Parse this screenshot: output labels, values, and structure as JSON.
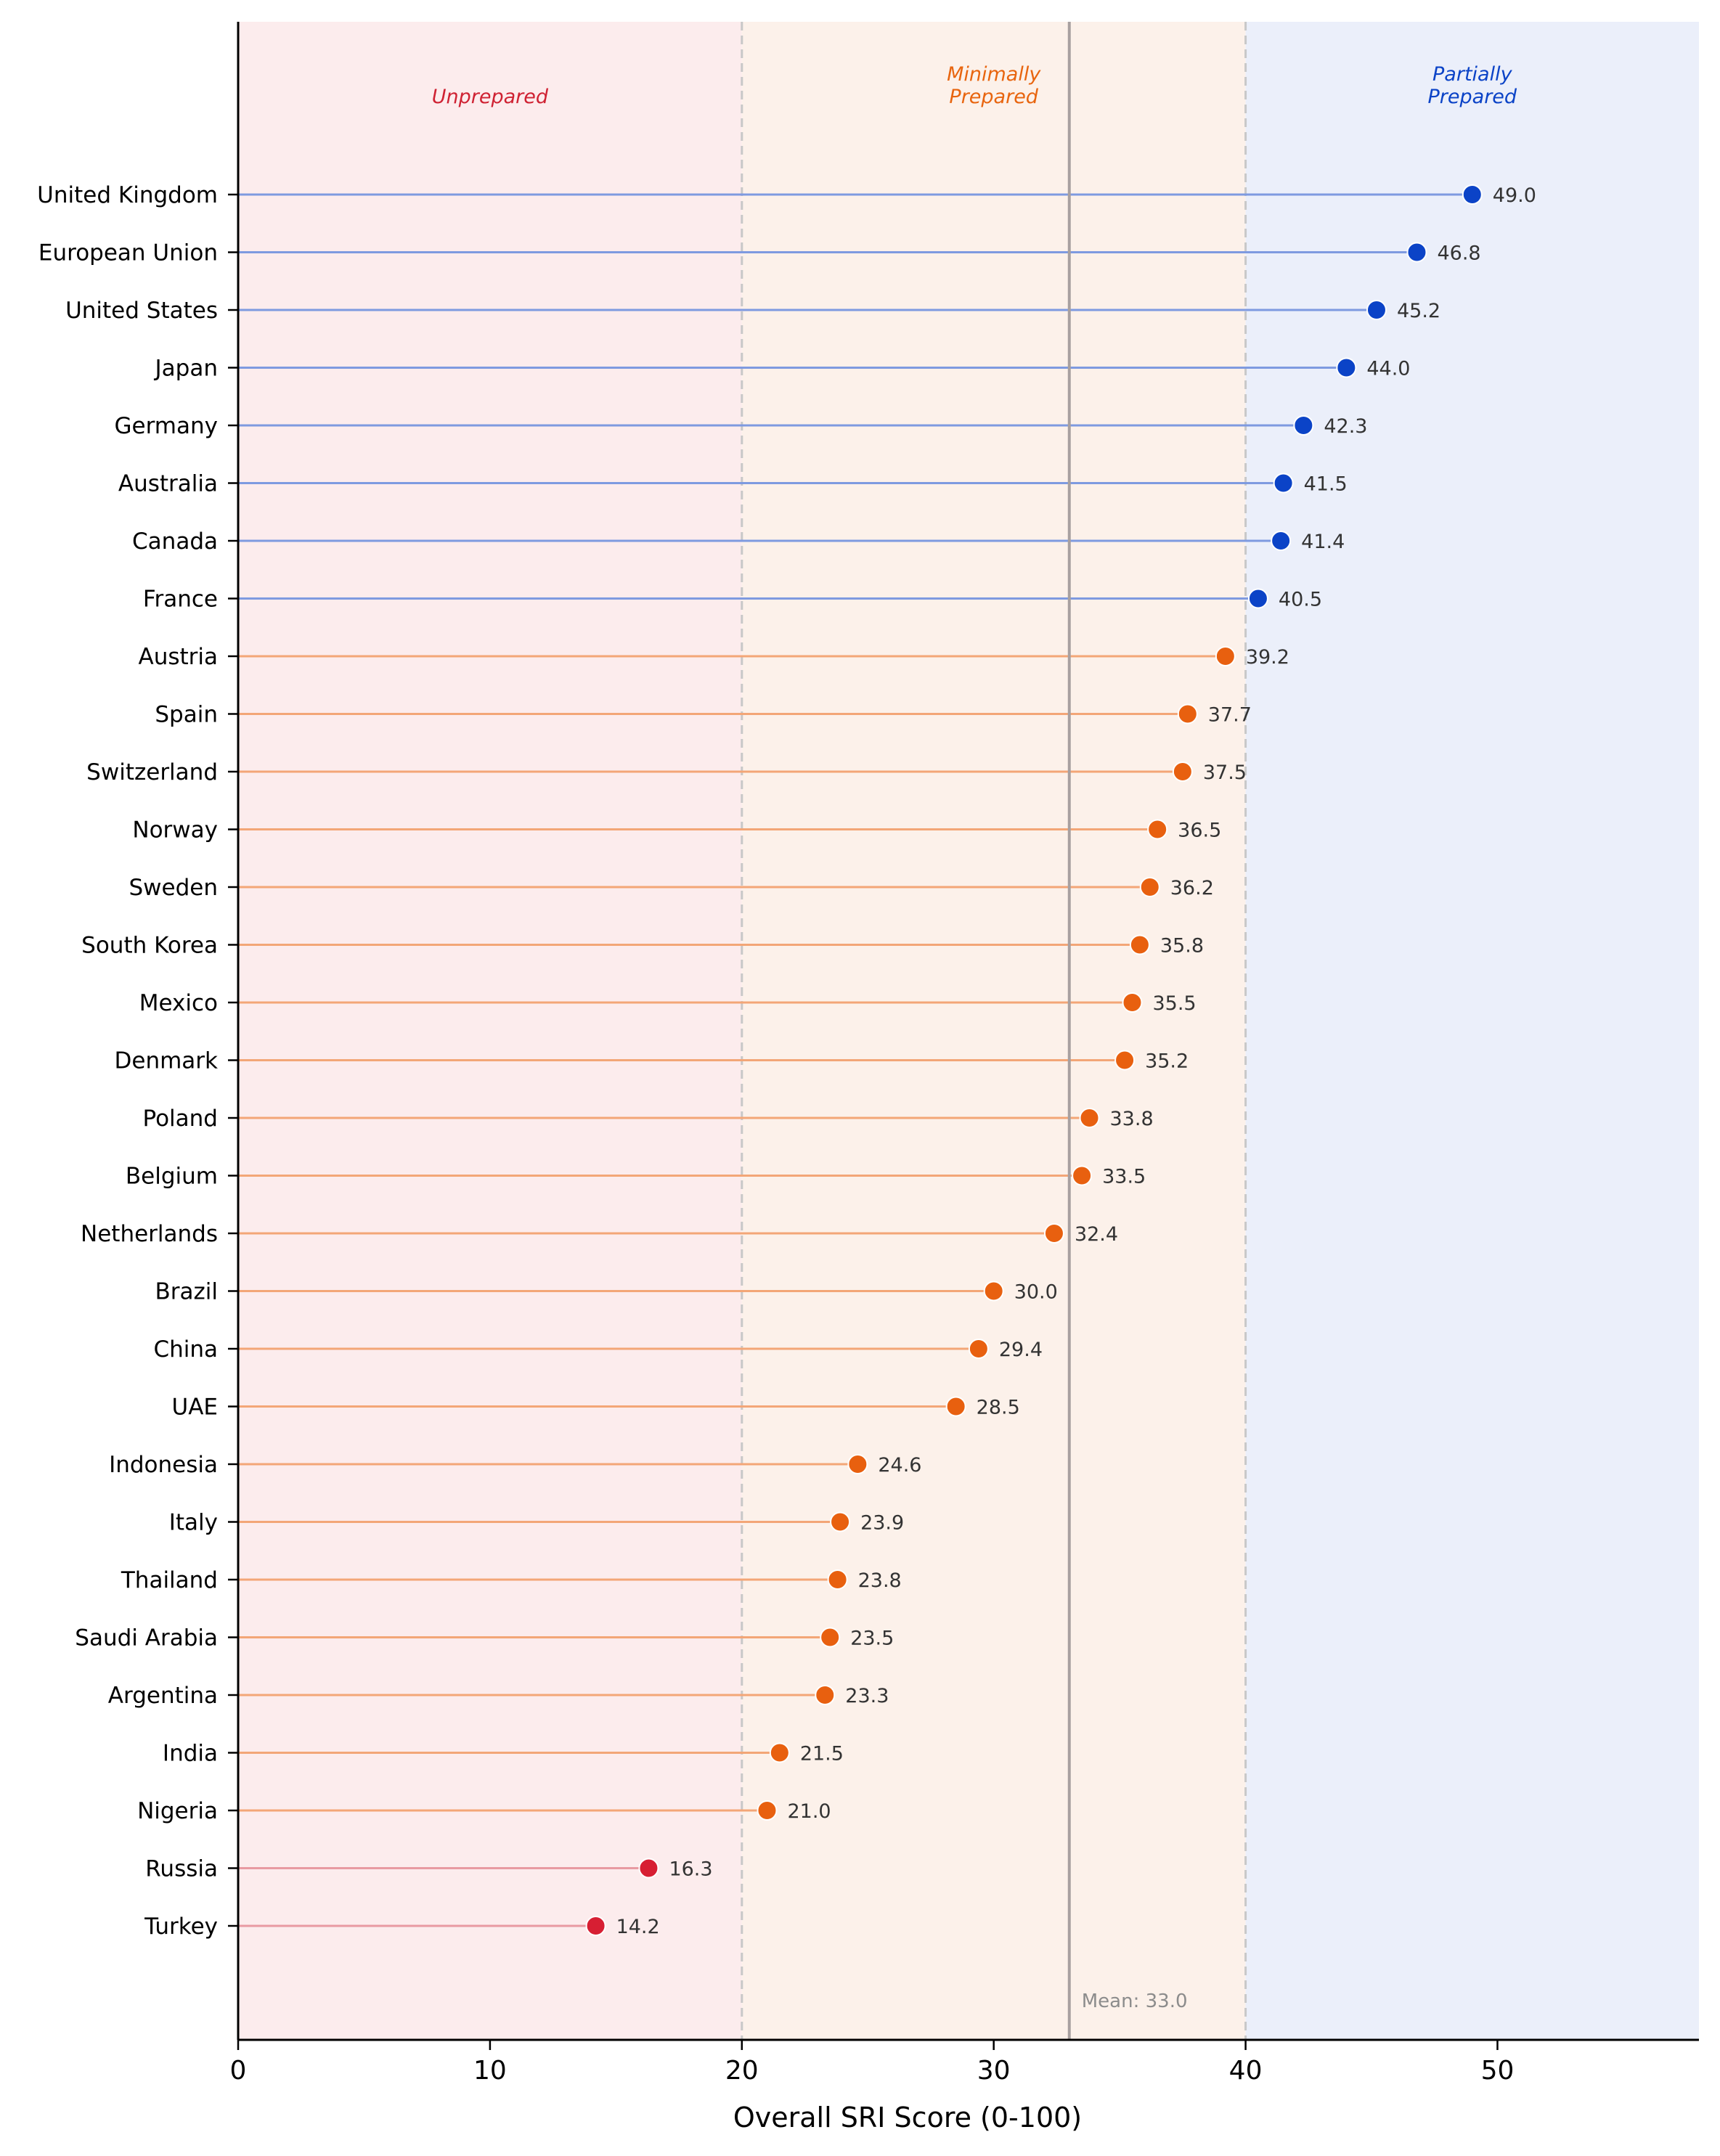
{
  "chart_data": {
    "type": "lollipop",
    "title": "",
    "xlabel": "Overall SRI Score (0-100)",
    "ylabel": "",
    "xlim": [
      0,
      58
    ],
    "xticks": [
      0,
      10,
      20,
      30,
      40,
      50
    ],
    "mean": 33.0,
    "mean_label": "Mean: 33.0",
    "bands": [
      {
        "label": "Unprepared",
        "from": 0,
        "to": 20,
        "fill": "#fceced",
        "text_color": "#cf2233"
      },
      {
        "label": "Minimally\nPrepared",
        "from": 20,
        "to": 40,
        "fill": "#fcf1ea",
        "text_color": "#e8650f"
      },
      {
        "label": "Partially\nPrepared",
        "from": 40,
        "to": 58,
        "fill": "#ebeffa",
        "text_color": "#0b43c7"
      }
    ],
    "colors": {
      "unprepared": "#d71f33",
      "minimal": "#e8600f",
      "partial": "#0b43c7",
      "unprepared_line": "#e89aa2",
      "minimal_line": "#f3a677",
      "partial_line": "#7e9ae0",
      "boundary": "#c8c8c8",
      "mean_line": "#a8a0a0",
      "mean_text": "#8c8c8c",
      "value_text": "#333333"
    },
    "categories": [
      "United Kingdom",
      "European Union",
      "United States",
      "Japan",
      "Germany",
      "Australia",
      "Canada",
      "France",
      "Austria",
      "Spain",
      "Switzerland",
      "Norway",
      "Sweden",
      "South Korea",
      "Mexico",
      "Denmark",
      "Poland",
      "Belgium",
      "Netherlands",
      "Brazil",
      "China",
      "UAE",
      "Indonesia",
      "Italy",
      "Thailand",
      "Saudi Arabia",
      "Argentina",
      "India",
      "Nigeria",
      "Russia",
      "Turkey"
    ],
    "values": [
      49.0,
      46.8,
      45.2,
      44.0,
      42.3,
      41.5,
      41.4,
      40.5,
      39.2,
      37.7,
      37.5,
      36.5,
      36.2,
      35.8,
      35.5,
      35.2,
      33.8,
      33.5,
      32.4,
      30.0,
      29.4,
      28.5,
      24.6,
      23.9,
      23.8,
      23.5,
      23.3,
      21.5,
      21.0,
      16.3,
      14.2
    ],
    "value_labels": [
      "49.0",
      "46.8",
      "45.2",
      "44.0",
      "42.3",
      "41.5",
      "41.4",
      "40.5",
      "39.2",
      "37.7",
      "37.5",
      "36.5",
      "36.2",
      "35.8",
      "35.5",
      "35.2",
      "33.8",
      "33.5",
      "32.4",
      "30.0",
      "29.4",
      "28.5",
      "24.6",
      "23.9",
      "23.8",
      "23.5",
      "23.3",
      "21.5",
      "21.0",
      "16.3",
      "14.2"
    ]
  }
}
